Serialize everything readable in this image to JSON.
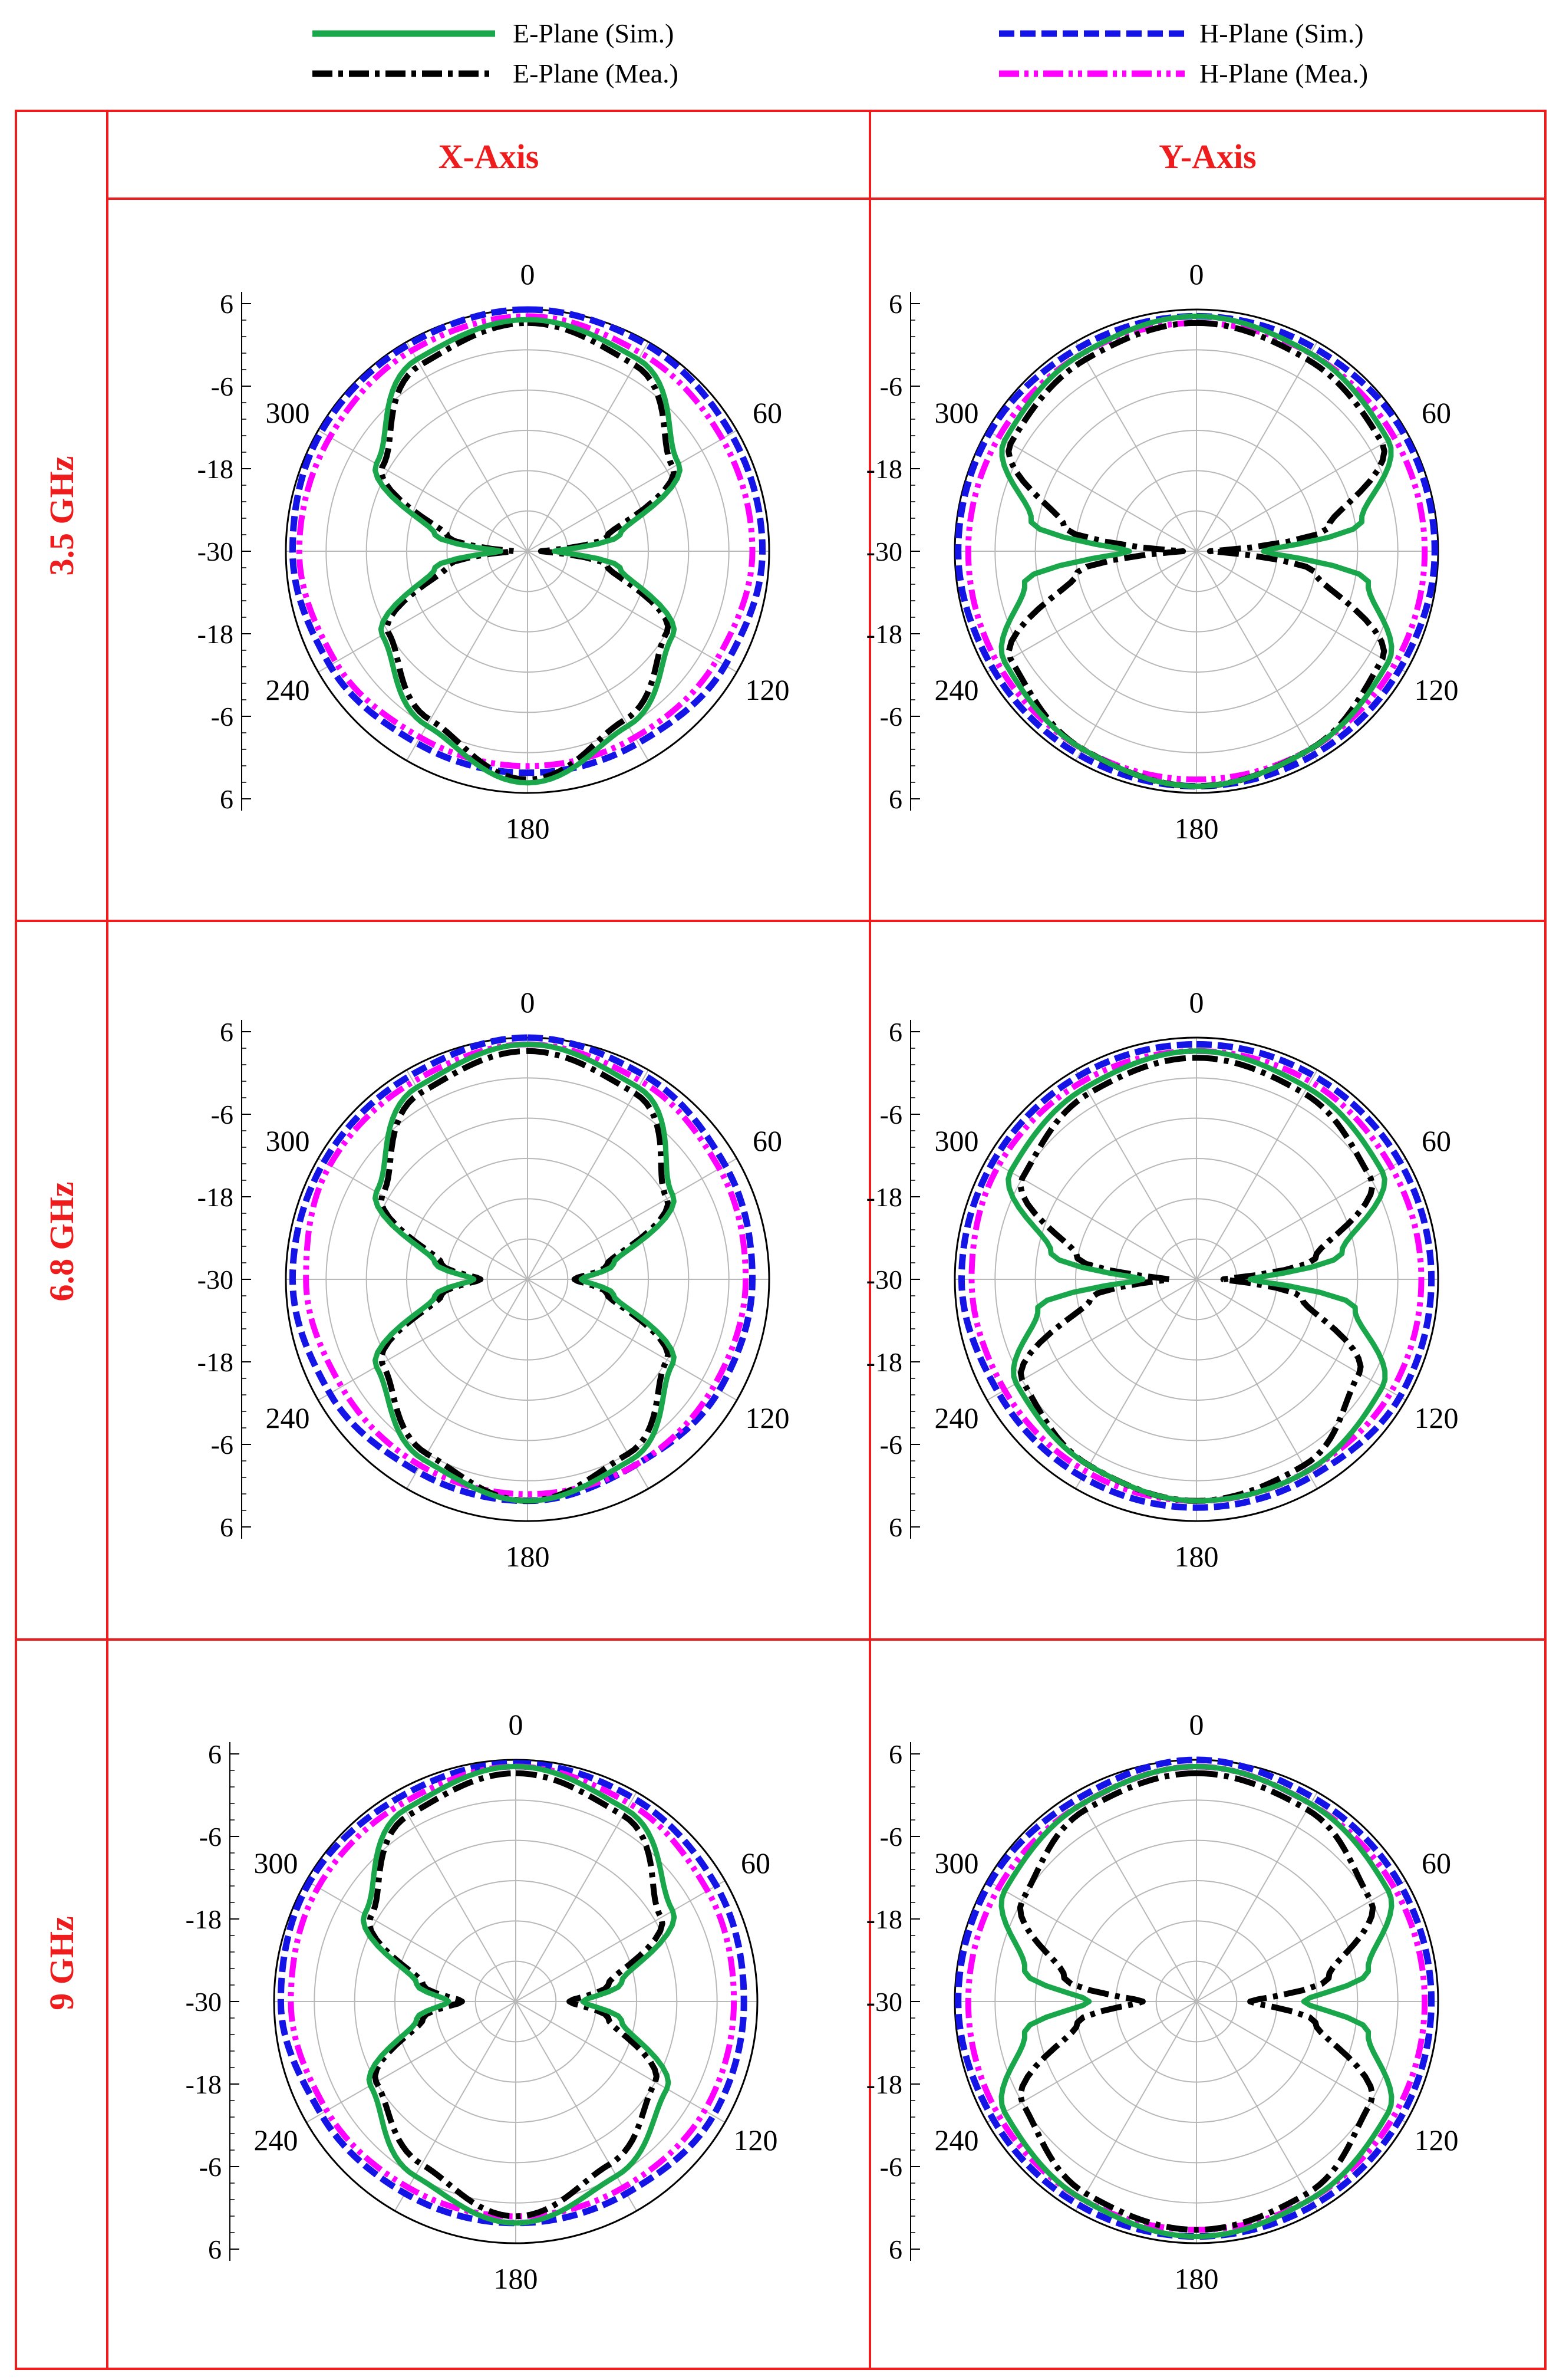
{
  "legend": [
    {
      "label": "E-Plane (Sim.)",
      "color": "#1aa64a",
      "dash": "solid"
    },
    {
      "label": "E-Plane (Mea.)",
      "color": "#000000",
      "dash": "dashdot"
    },
    {
      "label": "H-Plane (Sim.)",
      "color": "#1414e6",
      "dash": "dash"
    },
    {
      "label": "H-Plane (Mea.)",
      "color": "#ff00ff",
      "dash": "dashdotdot"
    }
  ],
  "columns": [
    "X-Axis",
    "Y-Axis"
  ],
  "rows": [
    "3.5 GHz",
    "6.8 GHz",
    "9 GHz"
  ],
  "colors": {
    "frame": "#ee1c1c",
    "header_text": "#ee1c1c"
  },
  "chart_data": [
    {
      "type": "polar",
      "row": "3.5 GHz",
      "column": "X-Axis",
      "angle_labels": [
        "0",
        "60",
        "120",
        "180",
        "240",
        "300"
      ],
      "radial_tick_labels": [
        "6",
        "-6",
        "-18",
        "-30",
        "-18",
        "-6",
        "6"
      ],
      "rlim": [
        -30,
        6
      ],
      "series": [
        {
          "name": "E-Plane (Sim.)",
          "theta": [
            0,
            30,
            60,
            80,
            90,
            100,
            120,
            150,
            180,
            210,
            240,
            260,
            270,
            280,
            300,
            330,
            360
          ],
          "r": [
            4.5,
            3,
            -4,
            -16,
            -26,
            -16,
            -5,
            0,
            4.5,
            0,
            -5,
            -16,
            -26,
            -16,
            -4,
            3,
            4.5
          ]
        },
        {
          "name": "E-Plane (Mea.)",
          "theta": [
            0,
            30,
            60,
            80,
            90,
            100,
            120,
            150,
            180,
            210,
            240,
            260,
            270,
            280,
            300,
            330,
            360
          ],
          "r": [
            4,
            2,
            -5,
            -18,
            -28,
            -18,
            -6,
            -1,
            4,
            -1,
            -6,
            -18,
            -28,
            -18,
            -5,
            2,
            4
          ]
        },
        {
          "name": "H-Plane (Sim.)",
          "theta": [
            0,
            30,
            60,
            90,
            120,
            150,
            180,
            210,
            240,
            270,
            300,
            330,
            360
          ],
          "r": [
            6,
            5.5,
            5,
            5,
            4,
            3,
            3,
            3,
            4,
            5,
            5.5,
            5.5,
            6
          ]
        },
        {
          "name": "H-Plane (Mea.)",
          "theta": [
            0,
            30,
            60,
            90,
            120,
            150,
            180,
            210,
            240,
            270,
            300,
            330,
            360
          ],
          "r": [
            5,
            4,
            3.5,
            3.5,
            2.5,
            2,
            2,
            2,
            3,
            4,
            4,
            4.5,
            5
          ]
        }
      ]
    },
    {
      "type": "polar",
      "row": "3.5 GHz",
      "column": "Y-Axis",
      "angle_labels": [
        "0",
        "60",
        "120",
        "180",
        "240",
        "300"
      ],
      "radial_tick_labels": [
        "6",
        "-6",
        "-18",
        "-30",
        "-18",
        "-6",
        "6"
      ],
      "rlim": [
        -30,
        6
      ],
      "series": [
        {
          "name": "E-Plane (Sim.)",
          "theta": [
            0,
            30,
            60,
            80,
            90,
            100,
            120,
            150,
            180,
            210,
            240,
            260,
            270,
            280,
            300,
            330,
            360
          ],
          "r": [
            5,
            4,
            3,
            -5,
            -20,
            -4,
            3,
            4,
            5,
            4,
            3,
            -4,
            -20,
            -5,
            3,
            4,
            5
          ]
        },
        {
          "name": "E-Plane (Mea.)",
          "theta": [
            0,
            30,
            60,
            80,
            90,
            100,
            120,
            150,
            180,
            210,
            240,
            260,
            270,
            280,
            300,
            330,
            360
          ],
          "r": [
            4,
            3,
            2,
            -10,
            -28,
            -12,
            2,
            4,
            5,
            4,
            2,
            -12,
            -28,
            -10,
            2,
            3,
            4
          ]
        },
        {
          "name": "H-Plane (Sim.)",
          "theta": [
            0,
            30,
            60,
            90,
            120,
            150,
            180,
            210,
            240,
            270,
            300,
            330,
            360
          ],
          "r": [
            5,
            5,
            5.5,
            5.5,
            5,
            5,
            5,
            5,
            5,
            5.5,
            5.5,
            5,
            5
          ]
        },
        {
          "name": "H-Plane (Mea.)",
          "theta": [
            0,
            30,
            60,
            90,
            120,
            150,
            180,
            210,
            240,
            270,
            300,
            330,
            360
          ],
          "r": [
            4,
            4,
            4,
            4,
            4,
            4,
            4,
            4,
            4,
            4,
            4,
            4,
            4
          ]
        }
      ]
    },
    {
      "type": "polar",
      "row": "6.8 GHz",
      "column": "X-Axis",
      "angle_labels": [
        "0",
        "60",
        "120",
        "180",
        "240",
        "300"
      ],
      "radial_tick_labels": [
        "6",
        "-6",
        "-18",
        "-30",
        "-18",
        "-6",
        "6"
      ],
      "rlim": [
        -30,
        6
      ],
      "series": [
        {
          "name": "E-Plane (Sim.)",
          "theta": [
            0,
            30,
            60,
            80,
            90,
            100,
            120,
            150,
            180,
            210,
            240,
            260,
            270,
            280,
            300,
            330,
            360
          ],
          "r": [
            5,
            3,
            -5,
            -17,
            -22,
            -17,
            -5,
            1,
            3,
            1,
            -4,
            -16,
            -22,
            -16,
            -4,
            3,
            5
          ]
        },
        {
          "name": "E-Plane (Mea.)",
          "theta": [
            0,
            30,
            60,
            80,
            90,
            100,
            120,
            150,
            180,
            210,
            240,
            260,
            270,
            280,
            300,
            330,
            360
          ],
          "r": [
            4,
            2,
            -6,
            -18,
            -23,
            -18,
            -6,
            0,
            3,
            0,
            -5,
            -17,
            -23,
            -17,
            -5,
            2,
            4
          ]
        },
        {
          "name": "H-Plane (Sim.)",
          "theta": [
            0,
            30,
            60,
            90,
            120,
            150,
            180,
            210,
            240,
            270,
            300,
            330,
            360
          ],
          "r": [
            6,
            5,
            4,
            3.5,
            3,
            2,
            3,
            3,
            4,
            5,
            5,
            5,
            6
          ]
        },
        {
          "name": "H-Plane (Mea.)",
          "theta": [
            0,
            30,
            60,
            90,
            120,
            150,
            180,
            210,
            240,
            270,
            300,
            330,
            360
          ],
          "r": [
            5,
            4,
            3,
            2.5,
            2,
            2,
            2,
            2,
            2,
            3,
            4,
            4,
            5
          ]
        }
      ]
    },
    {
      "type": "polar",
      "row": "6.8 GHz",
      "column": "Y-Axis",
      "angle_labels": [
        "0",
        "60",
        "120",
        "180",
        "240",
        "300"
      ],
      "radial_tick_labels": [
        "6",
        "-6",
        "-18",
        "-30",
        "-18",
        "-6",
        "6"
      ],
      "rlim": [
        -30,
        6
      ],
      "series": [
        {
          "name": "E-Plane (Sim.)",
          "theta": [
            0,
            30,
            60,
            80,
            90,
            100,
            120,
            150,
            180,
            210,
            240,
            260,
            270,
            280,
            300,
            330,
            360
          ],
          "r": [
            4,
            3,
            2,
            -8,
            -22,
            -6,
            2,
            3,
            3,
            2,
            1,
            -6,
            -22,
            -8,
            2,
            3,
            4
          ]
        },
        {
          "name": "E-Plane (Mea.)",
          "theta": [
            0,
            30,
            60,
            80,
            90,
            100,
            120,
            150,
            180,
            210,
            240,
            260,
            270,
            280,
            300,
            330,
            360
          ],
          "r": [
            3,
            2,
            0,
            -12,
            -26,
            -14,
            -2,
            2,
            3,
            2,
            0,
            -14,
            -26,
            -12,
            0,
            2,
            3
          ]
        },
        {
          "name": "H-Plane (Sim.)",
          "theta": [
            0,
            30,
            60,
            90,
            120,
            150,
            180,
            210,
            240,
            270,
            300,
            330,
            360
          ],
          "r": [
            5,
            5,
            5,
            5,
            5,
            4,
            4,
            4,
            4,
            5,
            5,
            5,
            5
          ]
        },
        {
          "name": "H-Plane (Mea.)",
          "theta": [
            0,
            30,
            60,
            90,
            120,
            150,
            180,
            210,
            240,
            270,
            300,
            330,
            360
          ],
          "r": [
            4,
            4,
            3.5,
            3.5,
            3.5,
            3,
            3,
            3,
            3,
            3.5,
            4,
            4,
            4
          ]
        }
      ]
    },
    {
      "type": "polar",
      "row": "9 GHz",
      "column": "X-Axis",
      "angle_labels": [
        "0",
        "60",
        "120",
        "180",
        "240",
        "300"
      ],
      "radial_tick_labels": [
        "6",
        "-6",
        "-18",
        "-30",
        "-18",
        "-6",
        "6"
      ],
      "rlim": [
        -30,
        6
      ],
      "series": [
        {
          "name": "E-Plane (Sim.)",
          "theta": [
            0,
            30,
            60,
            80,
            90,
            100,
            120,
            150,
            180,
            210,
            240,
            260,
            270,
            280,
            300,
            330,
            360
          ],
          "r": [
            5,
            3,
            -3,
            -14,
            -20,
            -14,
            -4,
            0,
            3,
            0,
            -5,
            -15,
            -20,
            -15,
            -4,
            3,
            5
          ]
        },
        {
          "name": "E-Plane (Mea.)",
          "theta": [
            0,
            30,
            60,
            80,
            90,
            100,
            120,
            150,
            180,
            210,
            240,
            260,
            270,
            280,
            300,
            330,
            360
          ],
          "r": [
            4,
            2,
            -5,
            -16,
            -22,
            -16,
            -6,
            -2,
            2,
            -2,
            -6,
            -16,
            -22,
            -16,
            -5,
            2,
            4
          ]
        },
        {
          "name": "H-Plane (Sim.)",
          "theta": [
            0,
            30,
            60,
            90,
            120,
            150,
            180,
            210,
            240,
            270,
            300,
            330,
            360
          ],
          "r": [
            5.5,
            5,
            4.5,
            4,
            4,
            3,
            3,
            3,
            3.5,
            5,
            5.5,
            5,
            5.5
          ]
        },
        {
          "name": "H-Plane (Mea.)",
          "theta": [
            0,
            30,
            60,
            90,
            120,
            150,
            180,
            210,
            240,
            270,
            300,
            330,
            360
          ],
          "r": [
            5,
            4,
            3,
            2.5,
            2.5,
            2,
            2,
            2,
            2.5,
            3.5,
            4,
            4,
            5
          ]
        }
      ]
    },
    {
      "type": "polar",
      "row": "9 GHz",
      "column": "Y-Axis",
      "angle_labels": [
        "0",
        "60",
        "120",
        "180",
        "240",
        "300"
      ],
      "radial_tick_labels": [
        "6",
        "-6",
        "-18",
        "-30",
        "-18",
        "-6",
        "6"
      ],
      "rlim": [
        -30,
        6
      ],
      "series": [
        {
          "name": "E-Plane (Sim.)",
          "theta": [
            0,
            30,
            60,
            80,
            90,
            100,
            120,
            150,
            180,
            210,
            240,
            260,
            270,
            280,
            300,
            330,
            360
          ],
          "r": [
            5,
            4,
            3,
            -4,
            -14,
            -4,
            3,
            4,
            5,
            4,
            3,
            -4,
            -14,
            -4,
            3,
            4,
            5
          ]
        },
        {
          "name": "E-Plane (Mea.)",
          "theta": [
            0,
            30,
            60,
            80,
            90,
            100,
            120,
            150,
            180,
            210,
            240,
            260,
            270,
            280,
            300,
            330,
            360
          ],
          "r": [
            4,
            3,
            0,
            -10,
            -22,
            -12,
            0,
            3,
            4,
            3,
            0,
            -12,
            -22,
            -10,
            0,
            3,
            4
          ]
        },
        {
          "name": "H-Plane (Sim.)",
          "theta": [
            0,
            30,
            60,
            90,
            120,
            150,
            180,
            210,
            240,
            270,
            300,
            330,
            360
          ],
          "r": [
            6,
            5,
            5,
            5,
            5,
            5,
            5,
            5,
            5,
            5.5,
            5.5,
            5,
            6
          ]
        },
        {
          "name": "H-Plane (Mea.)",
          "theta": [
            0,
            30,
            60,
            90,
            120,
            150,
            180,
            210,
            240,
            270,
            300,
            330,
            360
          ],
          "r": [
            5,
            4,
            4,
            4,
            4,
            4,
            4,
            4,
            4,
            4,
            4,
            4,
            5
          ]
        }
      ]
    }
  ]
}
